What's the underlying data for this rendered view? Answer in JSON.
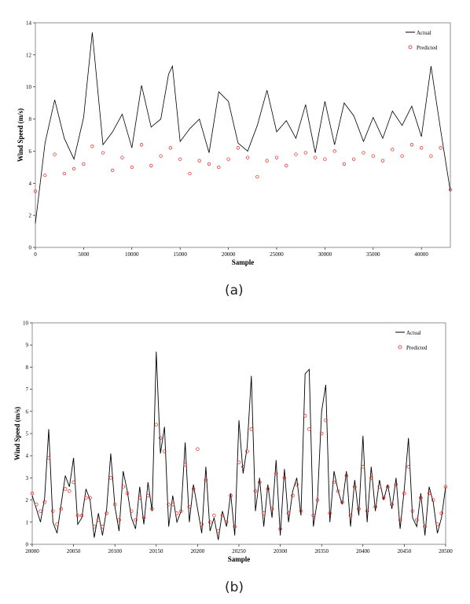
{
  "chart_data": [
    {
      "type": "line",
      "panel_label": "(a)",
      "xlabel": "Sample",
      "ylabel": "Wind Speed (m/s)",
      "xlim": [
        0,
        43000
      ],
      "ylim": [
        0,
        14
      ],
      "xticks": [
        0,
        5000,
        10000,
        15000,
        20000,
        25000,
        30000,
        35000,
        40000
      ],
      "yticks": [
        0,
        2,
        4,
        6,
        8,
        10,
        12,
        14
      ],
      "legend_position": "top-right",
      "series": [
        {
          "name": "Actual",
          "style": "line",
          "color": "#000000",
          "x": [
            0,
            1000,
            2000,
            3000,
            4000,
            5000,
            5900,
            7000,
            8000,
            9000,
            10000,
            11000,
            12000,
            13000,
            13800,
            14200,
            15000,
            16000,
            17000,
            18000,
            19000,
            20000,
            21000,
            22000,
            23000,
            24000,
            25000,
            26000,
            27000,
            28000,
            29000,
            30000,
            31000,
            32000,
            33000,
            34000,
            35000,
            36000,
            37000,
            38000,
            39000,
            40000,
            41000,
            42000,
            43000
          ],
          "y": [
            1.5,
            6.5,
            9.2,
            6.8,
            5.5,
            8.1,
            13.4,
            6.4,
            7.2,
            8.3,
            6.2,
            10.1,
            7.5,
            8.0,
            10.8,
            11.3,
            6.6,
            7.4,
            8.0,
            5.9,
            9.7,
            9.1,
            6.5,
            6.0,
            7.6,
            9.8,
            7.2,
            7.9,
            6.8,
            8.9,
            5.9,
            9.1,
            6.4,
            9.0,
            8.2,
            6.6,
            8.1,
            6.8,
            8.5,
            7.6,
            8.8,
            6.9,
            11.3,
            7.3,
            3.5
          ]
        },
        {
          "name": "Predicted",
          "style": "markers",
          "color": "#e8241c",
          "x": [
            0,
            1000,
            2000,
            3000,
            4000,
            5000,
            5900,
            7000,
            8000,
            9000,
            10000,
            11000,
            12000,
            13000,
            14000,
            15000,
            16000,
            17000,
            18000,
            19000,
            20000,
            21000,
            22000,
            23000,
            24000,
            25000,
            26000,
            27000,
            28000,
            29000,
            30000,
            31000,
            32000,
            33000,
            34000,
            35000,
            36000,
            37000,
            38000,
            39000,
            40000,
            41000,
            42000,
            43000
          ],
          "y": [
            3.5,
            4.5,
            5.8,
            4.6,
            4.9,
            5.2,
            6.3,
            5.9,
            4.8,
            5.6,
            5.0,
            6.4,
            5.1,
            5.7,
            6.2,
            5.5,
            4.6,
            5.4,
            5.2,
            5.0,
            5.5,
            6.2,
            5.6,
            4.4,
            5.4,
            5.6,
            5.1,
            5.8,
            5.9,
            5.6,
            5.5,
            6.0,
            5.2,
            5.5,
            5.9,
            5.7,
            5.4,
            6.1,
            5.7,
            6.4,
            6.2,
            5.7,
            6.2,
            3.6
          ]
        }
      ]
    },
    {
      "type": "line",
      "panel_label": "(b)",
      "xlabel": "Sample",
      "ylabel": "Wind Speed (m/s)",
      "xlim": [
        20000,
        20500
      ],
      "ylim": [
        0,
        10
      ],
      "xticks": [
        20000,
        20050,
        20100,
        20150,
        20200,
        20250,
        20300,
        20350,
        20400,
        20450,
        20500
      ],
      "yticks": [
        0,
        1,
        2,
        3,
        4,
        5,
        6,
        7,
        8,
        9,
        10
      ],
      "legend_position": "top-right",
      "series": [
        {
          "name": "Actual",
          "style": "line",
          "color": "#000000",
          "x": [
            20000,
            20005,
            20010,
            20015,
            20020,
            20025,
            20030,
            20035,
            20040,
            20045,
            20050,
            20055,
            20060,
            20065,
            20070,
            20075,
            20080,
            20085,
            20090,
            20095,
            20100,
            20105,
            20110,
            20115,
            20120,
            20125,
            20130,
            20135,
            20140,
            20145,
            20150,
            20155,
            20160,
            20165,
            20170,
            20175,
            20180,
            20185,
            20190,
            20195,
            20200,
            20205,
            20210,
            20215,
            20220,
            20225,
            20230,
            20235,
            20240,
            20245,
            20250,
            20255,
            20260,
            20265,
            20270,
            20275,
            20280,
            20285,
            20290,
            20295,
            20300,
            20305,
            20310,
            20315,
            20320,
            20325,
            20330,
            20335,
            20340,
            20345,
            20350,
            20355,
            20360,
            20365,
            20370,
            20375,
            20380,
            20385,
            20390,
            20395,
            20400,
            20405,
            20410,
            20415,
            20420,
            20425,
            20430,
            20435,
            20440,
            20445,
            20450,
            20455,
            20460,
            20465,
            20470,
            20475,
            20480,
            20485,
            20490,
            20495,
            20500
          ],
          "y": [
            2.2,
            1.6,
            1.0,
            2.1,
            5.2,
            1.0,
            0.5,
            1.8,
            3.1,
            2.6,
            3.9,
            0.9,
            1.2,
            2.5,
            2.0,
            0.3,
            1.4,
            0.4,
            1.6,
            4.1,
            1.7,
            0.6,
            3.3,
            2.4,
            1.2,
            0.7,
            2.6,
            0.9,
            2.8,
            1.5,
            8.7,
            4.1,
            5.3,
            0.8,
            2.2,
            1.0,
            1.5,
            4.6,
            1.0,
            2.7,
            1.6,
            0.5,
            3.5,
            0.6,
            1.2,
            0.2,
            1.5,
            0.8,
            2.3,
            0.4,
            5.6,
            3.2,
            4.4,
            7.6,
            1.5,
            3.0,
            0.8,
            2.7,
            1.2,
            3.8,
            0.4,
            3.4,
            1.0,
            2.4,
            3.0,
            1.3,
            7.7,
            7.9,
            0.8,
            2.0,
            6.0,
            7.2,
            1.0,
            3.3,
            2.4,
            1.8,
            3.3,
            0.8,
            2.9,
            1.3,
            4.9,
            1.0,
            3.5,
            1.5,
            2.9,
            2.0,
            2.7,
            1.6,
            3.0,
            0.7,
            2.5,
            4.8,
            1.2,
            0.8,
            2.3,
            0.4,
            2.6,
            1.9,
            0.5,
            1.2,
            2.6
          ]
        },
        {
          "name": "Predicted",
          "style": "markers",
          "color": "#e8241c",
          "x": [
            20000,
            20005,
            20010,
            20015,
            20020,
            20025,
            20030,
            20035,
            20040,
            20045,
            20050,
            20055,
            20060,
            20065,
            20070,
            20075,
            20080,
            20085,
            20090,
            20095,
            20100,
            20105,
            20110,
            20115,
            20120,
            20125,
            20130,
            20135,
            20140,
            20145,
            20150,
            20155,
            20160,
            20165,
            20170,
            20175,
            20180,
            20185,
            20190,
            20195,
            20200,
            20205,
            20210,
            20215,
            20220,
            20225,
            20230,
            20235,
            20240,
            20245,
            20250,
            20255,
            20260,
            20265,
            20270,
            20275,
            20280,
            20285,
            20290,
            20295,
            20300,
            20305,
            20310,
            20315,
            20320,
            20325,
            20330,
            20335,
            20340,
            20345,
            20350,
            20355,
            20360,
            20365,
            20370,
            20375,
            20380,
            20385,
            20390,
            20395,
            20400,
            20405,
            20410,
            20415,
            20420,
            20425,
            20430,
            20435,
            20440,
            20445,
            20450,
            20455,
            20460,
            20465,
            20470,
            20475,
            20480,
            20485,
            20490,
            20495,
            20500
          ],
          "y": [
            2.3,
            1.8,
            1.5,
            1.9,
            3.9,
            1.5,
            0.9,
            1.6,
            2.5,
            2.4,
            2.8,
            1.3,
            1.3,
            2.1,
            2.1,
            0.8,
            1.1,
            0.8,
            1.4,
            3.0,
            1.8,
            1.1,
            2.6,
            2.3,
            1.5,
            1.1,
            2.1,
            1.2,
            2.2,
            1.6,
            5.4,
            4.8,
            4.2,
            1.8,
            1.8,
            1.4,
            1.5,
            3.6,
            1.7,
            2.5,
            4.3,
            0.9,
            2.9,
            1.0,
            1.3,
            0.6,
            1.3,
            1.0,
            2.2,
            0.8,
            3.7,
            3.5,
            4.2,
            5.2,
            2.4,
            2.8,
            1.4,
            2.5,
            1.6,
            3.2,
            0.7,
            3.0,
            1.4,
            2.2,
            2.7,
            1.5,
            5.8,
            5.2,
            1.3,
            2.0,
            5.0,
            5.6,
            1.4,
            2.8,
            2.4,
            1.9,
            3.1,
            1.3,
            2.6,
            1.6,
            3.5,
            1.5,
            3.0,
            1.7,
            2.6,
            2.1,
            2.6,
            1.8,
            2.7,
            1.1,
            2.3,
            3.5,
            1.5,
            1.1,
            2.1,
            0.8,
            2.3,
            2.0,
            0.9,
            1.4,
            2.6
          ]
        }
      ]
    }
  ]
}
